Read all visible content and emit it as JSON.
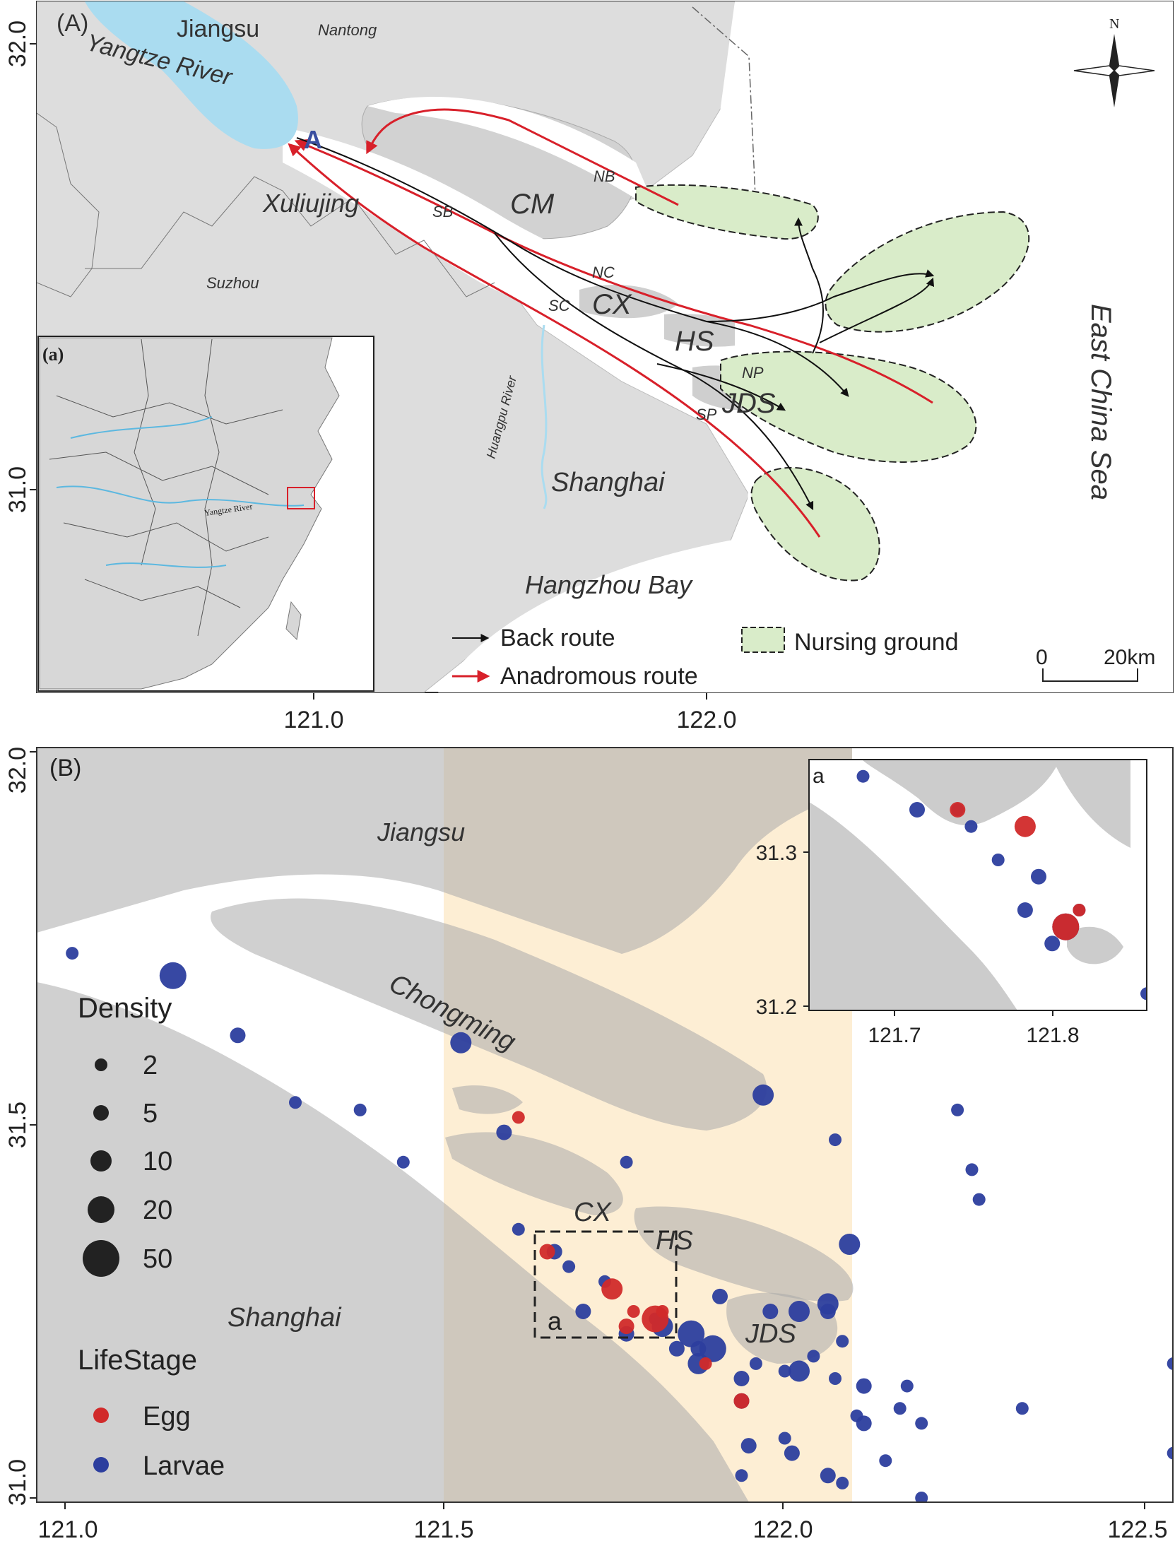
{
  "panelA": {
    "panel_label": "(A)",
    "inset_label": "(a)",
    "inset_river_label": "Yangtze River",
    "north_label": "N",
    "y_ticks": [
      "32.0",
      "31.0"
    ],
    "x_ticks": [
      "121.0",
      "122.0"
    ],
    "places": {
      "jiangsu": "Jiangsu",
      "yangtze": "Yangtze River",
      "nantong": "Nantong",
      "marker_a": "A",
      "xuliujing": "Xuliujing",
      "suzhou": "Suzhou",
      "sb": "SB",
      "nb": "NB",
      "cm": "CM",
      "nc": "NC",
      "sc": "SC",
      "cx": "CX",
      "hs": "HS",
      "np": "NP",
      "sp": "SP",
      "jds": "JDS",
      "huangpu": "Huangpu River",
      "shanghai": "Shanghai",
      "hangzhou_bay": "Hangzhou Bay",
      "east_china_sea": "East China Sea"
    },
    "legend": {
      "back_route": "Back route",
      "anadromous_route": "Anadromous route",
      "nursing_ground": "Nursing ground"
    },
    "scalebar": {
      "start": "0",
      "end": "20km"
    },
    "colors": {
      "land": "#dddddd",
      "water": "#ffffff",
      "river": "#aadcf0",
      "nursing": "#d9ecc9",
      "back": "#111111",
      "anadromous": "#d8202a"
    }
  },
  "panelB": {
    "panel_label": "(B)",
    "y_ticks": [
      "32.0",
      "31.5",
      "31.0"
    ],
    "x_ticks": [
      "121.0",
      "121.5",
      "122.0",
      "122.5"
    ],
    "places": {
      "jiangsu": "Jiangsu",
      "chongming": "Chongming",
      "cx": "CX",
      "hs": "HS",
      "jds": "JDS",
      "shanghai": "Shanghai",
      "box": "a"
    },
    "legend": {
      "density_title": "Density",
      "density_values": [
        "2",
        "5",
        "10",
        "20",
        "50"
      ],
      "lifestage_title": "LifeStage",
      "egg": "Egg",
      "larvae": "Larvae"
    },
    "inset": {
      "label": "a",
      "y_ticks": [
        "31.3",
        "31.2"
      ],
      "x_ticks": [
        "121.7",
        "121.8"
      ]
    },
    "colors": {
      "land": "#cccccc",
      "highlight_band": "#fdeed4",
      "egg": "#d12a2a",
      "larvae": "#2c3e9e"
    }
  },
  "chart_data": {
    "type": "scatter",
    "xlim": [
      121.0,
      122.5
    ],
    "ylim": [
      31.0,
      32.0
    ],
    "size_variable": "Density",
    "color_variable": "LifeStage",
    "series": [
      {
        "name": "Larvae",
        "points": [
          [
            121.01,
            31.73,
            2
          ],
          [
            121.15,
            31.7,
            20
          ],
          [
            121.24,
            31.62,
            5
          ],
          [
            121.32,
            31.53,
            2
          ],
          [
            121.41,
            31.52,
            2
          ],
          [
            121.47,
            31.45,
            2
          ],
          [
            121.61,
            31.49,
            5
          ],
          [
            121.78,
            31.45,
            2
          ],
          [
            121.55,
            31.61,
            10
          ],
          [
            121.97,
            31.54,
            10
          ],
          [
            121.63,
            31.36,
            2
          ],
          [
            121.68,
            31.33,
            5
          ],
          [
            121.7,
            31.31,
            2
          ],
          [
            121.75,
            31.29,
            2
          ],
          [
            121.72,
            31.25,
            5
          ],
          [
            121.82,
            31.24,
            2
          ],
          [
            121.78,
            31.22,
            5
          ],
          [
            121.83,
            31.23,
            10
          ],
          [
            121.87,
            31.22,
            20
          ],
          [
            121.9,
            31.2,
            20
          ],
          [
            121.88,
            31.18,
            10
          ],
          [
            121.94,
            31.13,
            5
          ],
          [
            122.04,
            31.19,
            2
          ],
          [
            121.94,
            31.16,
            5
          ],
          [
            122.0,
            31.17,
            2
          ],
          [
            122.02,
            31.17,
            10
          ],
          [
            122.07,
            31.16,
            2
          ],
          [
            122.11,
            31.15,
            5
          ],
          [
            122.16,
            31.12,
            2
          ],
          [
            122.14,
            31.05,
            2
          ],
          [
            122.17,
            31.15,
            2
          ],
          [
            122.11,
            31.1,
            5
          ],
          [
            122.01,
            31.06,
            5
          ],
          [
            122.0,
            31.08,
            2
          ],
          [
            121.94,
            31.03,
            2
          ],
          [
            121.95,
            31.07,
            5
          ],
          [
            121.88,
            31.2,
            5
          ],
          [
            121.85,
            31.2,
            5
          ],
          [
            121.91,
            31.27,
            5
          ],
          [
            121.98,
            31.25,
            5
          ],
          [
            122.06,
            31.25,
            5
          ],
          [
            122.02,
            31.25,
            10
          ],
          [
            122.06,
            31.26,
            10
          ],
          [
            122.08,
            31.21,
            2
          ],
          [
            122.1,
            31.11,
            2
          ],
          [
            122.09,
            31.34,
            10
          ],
          [
            122.07,
            31.48,
            2
          ],
          [
            122.24,
            31.52,
            2
          ],
          [
            122.26,
            31.44,
            2
          ],
          [
            122.27,
            31.4,
            2
          ],
          [
            122.33,
            31.12,
            2
          ],
          [
            122.54,
            31.18,
            2
          ],
          [
            122.54,
            31.06,
            2
          ],
          [
            122.19,
            31.0,
            2
          ],
          [
            122.19,
            31.1,
            2
          ],
          [
            122.06,
            31.03,
            5
          ],
          [
            122.08,
            31.02,
            2
          ],
          [
            121.96,
            31.18,
            2
          ]
        ]
      },
      {
        "name": "Egg",
        "points": [
          [
            121.63,
            31.51,
            2
          ],
          [
            121.67,
            31.33,
            5
          ],
          [
            121.76,
            31.28,
            10
          ],
          [
            121.79,
            31.25,
            2
          ],
          [
            121.78,
            31.23,
            5
          ],
          [
            121.82,
            31.24,
            20
          ],
          [
            121.83,
            31.25,
            2
          ],
          [
            121.94,
            31.13,
            5
          ],
          [
            121.89,
            31.18,
            2
          ]
        ]
      }
    ],
    "inset_chart": {
      "xlim": [
        121.6,
        121.85
      ],
      "ylim": [
        31.19,
        31.34
      ],
      "series": [
        {
          "name": "Larvae",
          "points": [
            [
              121.64,
              31.33,
              2
            ],
            [
              121.68,
              31.31,
              5
            ],
            [
              121.71,
              31.31,
              2
            ],
            [
              121.72,
              31.3,
              2
            ],
            [
              121.74,
              31.28,
              2
            ],
            [
              121.77,
              31.27,
              5
            ],
            [
              121.76,
              31.25,
              5
            ],
            [
              121.79,
              31.24,
              20
            ],
            [
              121.8,
              31.25,
              2
            ],
            [
              121.78,
              31.23,
              5
            ],
            [
              121.85,
              31.2,
              2
            ]
          ]
        },
        {
          "name": "Egg",
          "points": [
            [
              121.71,
              31.31,
              5
            ],
            [
              121.76,
              31.3,
              10
            ],
            [
              121.8,
              31.25,
              2
            ],
            [
              121.79,
              31.24,
              20
            ]
          ]
        }
      ]
    }
  }
}
